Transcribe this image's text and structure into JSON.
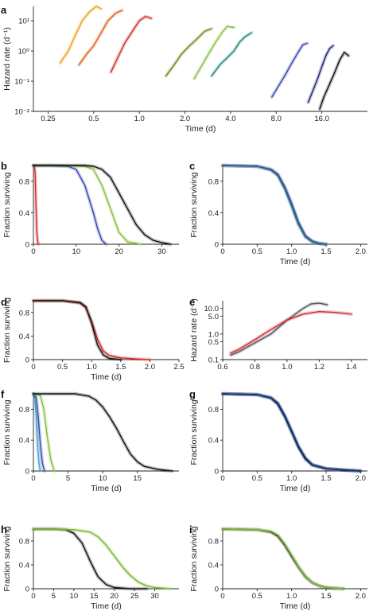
{
  "colors": {
    "orange": "#f0a020",
    "dark_orange": "#e06018",
    "red": "#d42a2a",
    "olive": "#6a8a20",
    "light_green": "#88c040",
    "teal": "#1f8a80",
    "blue": "#3a48b0",
    "navy": "#1a2878",
    "black": "#111111",
    "grey": "#505860",
    "cyan": "#38a8c8",
    "green": "#78b830"
  },
  "chart_data": [
    {
      "panel": "a",
      "type": "line",
      "xlabel": "Time (d)",
      "ylabel": "Hazard rate (d⁻¹)",
      "xscale": "log2",
      "yscale": "log10",
      "xlim": [
        0.2,
        32
      ],
      "ylim": [
        0.01,
        30
      ],
      "xticks": [
        0.25,
        0.5,
        1.0,
        2.0,
        4.0,
        8.0,
        16.0
      ],
      "xtick_labels": [
        "0.25",
        "0.5",
        "1.0",
        "2.0",
        "4.0",
        "8.0",
        "16.0"
      ],
      "yticks": [
        0.01,
        0.1,
        1,
        10
      ],
      "ytick_labels": [
        "10⁻²",
        "10⁻¹",
        "10⁰",
        "10¹"
      ],
      "series": [
        {
          "color": "orange",
          "x": [
            0.3,
            0.34,
            0.38,
            0.42,
            0.47,
            0.52,
            0.56
          ],
          "y": [
            0.4,
            1.0,
            3.5,
            10,
            20,
            30,
            25
          ]
        },
        {
          "color": "dark_orange",
          "x": [
            0.4,
            0.45,
            0.5,
            0.56,
            0.62,
            0.7,
            0.77
          ],
          "y": [
            0.35,
            0.8,
            1.5,
            4,
            10,
            18,
            22
          ]
        },
        {
          "color": "red",
          "x": [
            0.65,
            0.72,
            0.8,
            0.9,
            1.0,
            1.1,
            1.2
          ],
          "y": [
            0.2,
            0.6,
            1.8,
            4.5,
            10,
            14,
            12
          ]
        },
        {
          "color": "olive",
          "x": [
            1.5,
            1.7,
            1.9,
            2.15,
            2.4,
            2.7,
            3.0
          ],
          "y": [
            0.15,
            0.35,
            0.8,
            1.5,
            2.5,
            4.5,
            5.5
          ]
        },
        {
          "color": "light_green",
          "x": [
            2.3,
            2.6,
            2.9,
            3.2,
            3.5,
            3.8,
            4.2
          ],
          "y": [
            0.12,
            0.35,
            0.9,
            2.0,
            4.0,
            6.5,
            6.0
          ]
        },
        {
          "color": "teal",
          "x": [
            3.0,
            3.4,
            3.8,
            4.2,
            4.6,
            5.0,
            5.5
          ],
          "y": [
            0.15,
            0.35,
            0.6,
            1.0,
            2.0,
            3.0,
            4.0
          ]
        },
        {
          "color": "blue",
          "x": [
            7.5,
            8.3,
            9.1,
            10.0,
            11.0,
            12.0,
            12.8
          ],
          "y": [
            0.03,
            0.07,
            0.15,
            0.35,
            0.8,
            1.6,
            1.8
          ]
        },
        {
          "color": "navy",
          "x": [
            13.0,
            14.0,
            15.0,
            16.0,
            17.0,
            18.0,
            19.0
          ],
          "y": [
            0.02,
            0.05,
            0.12,
            0.3,
            0.7,
            1.2,
            1.5
          ]
        },
        {
          "color": "black",
          "x": [
            15.5,
            16.5,
            18.0,
            19.5,
            21.0,
            22.5,
            24.0
          ],
          "y": [
            0.012,
            0.03,
            0.08,
            0.2,
            0.5,
            0.9,
            0.7
          ]
        }
      ]
    },
    {
      "panel": "b",
      "type": "line",
      "xlabel": "",
      "ylabel": "Fraction surviving",
      "xlim": [
        0,
        34
      ],
      "ylim": [
        0,
        1.0
      ],
      "xticks": [
        0,
        10,
        20,
        30
      ],
      "yticks": [
        0,
        0.4,
        0.8
      ],
      "series": [
        {
          "color": "red",
          "x": [
            0,
            0.2,
            0.4,
            0.6,
            0.8,
            1.0,
            1.2
          ],
          "y": [
            1.0,
            1.0,
            0.9,
            0.5,
            0.15,
            0.03,
            0.0
          ]
        },
        {
          "color": "blue",
          "x": [
            0,
            4,
            8,
            10,
            12,
            14,
            15,
            16,
            17
          ],
          "y": [
            1.0,
            1.0,
            0.99,
            0.95,
            0.75,
            0.4,
            0.2,
            0.05,
            0.0
          ]
        },
        {
          "color": "light_green",
          "x": [
            0,
            8,
            12,
            14,
            16,
            18,
            20,
            22,
            25
          ],
          "y": [
            1.0,
            1.0,
            0.99,
            0.95,
            0.75,
            0.45,
            0.15,
            0.03,
            0.0
          ]
        },
        {
          "color": "black",
          "x": [
            0,
            12,
            14,
            16,
            18,
            20,
            22,
            24,
            26,
            28,
            30,
            32
          ],
          "y": [
            1.0,
            1.0,
            0.99,
            0.95,
            0.85,
            0.65,
            0.45,
            0.25,
            0.12,
            0.05,
            0.02,
            0.0
          ]
        }
      ]
    },
    {
      "panel": "c",
      "type": "line",
      "xlabel": "Time (d)",
      "ylabel": "Fraction surviving",
      "xlim": [
        0,
        2.1
      ],
      "ylim": [
        0,
        1.0
      ],
      "xticks": [
        0,
        0.5,
        1.0,
        1.5,
        2.0
      ],
      "xtick_labels": [
        "0",
        "0.5",
        "1.0",
        "1.5",
        "2.0"
      ],
      "yticks": [
        0,
        0.4,
        0.8
      ],
      "series": [
        {
          "color": "olive",
          "x": [
            0,
            0.5,
            0.7,
            0.8,
            0.9,
            1.0,
            1.05,
            1.1,
            1.2,
            1.3,
            1.4,
            1.5
          ],
          "y": [
            1.0,
            0.99,
            0.95,
            0.88,
            0.72,
            0.5,
            0.38,
            0.26,
            0.1,
            0.03,
            0.01,
            0.0
          ]
        },
        {
          "color": "teal",
          "x": [
            0,
            0.5,
            0.7,
            0.8,
            0.9,
            1.0,
            1.05,
            1.1,
            1.2,
            1.3,
            1.4,
            1.5
          ],
          "y": [
            1.0,
            0.99,
            0.94,
            0.87,
            0.7,
            0.48,
            0.36,
            0.25,
            0.09,
            0.03,
            0.01,
            0.0
          ]
        },
        {
          "color": "blue",
          "x": [
            0,
            0.5,
            0.7,
            0.8,
            0.9,
            1.0,
            1.05,
            1.1,
            1.2,
            1.3,
            1.4,
            1.5
          ],
          "y": [
            1.0,
            0.99,
            0.95,
            0.89,
            0.73,
            0.52,
            0.4,
            0.28,
            0.11,
            0.04,
            0.01,
            0.0
          ]
        }
      ]
    },
    {
      "panel": "d",
      "type": "line",
      "xlabel": "Time (d)",
      "ylabel": "Fraction surviving",
      "xlim": [
        0,
        2.5
      ],
      "ylim": [
        0,
        1.0
      ],
      "xticks": [
        0,
        0.5,
        1.0,
        1.5,
        2.0,
        2.5
      ],
      "xtick_labels": [
        "0",
        "0.5",
        "1.0",
        "1.5",
        "2.0",
        "2.5"
      ],
      "yticks": [
        0,
        0.4,
        0.8
      ],
      "series": [
        {
          "color": "red",
          "x": [
            0,
            0.5,
            0.8,
            0.9,
            1.0,
            1.1,
            1.2,
            1.3,
            1.5,
            1.8,
            2.0
          ],
          "y": [
            1.0,
            1.0,
            0.96,
            0.88,
            0.65,
            0.35,
            0.15,
            0.07,
            0.03,
            0.01,
            0.0
          ]
        },
        {
          "color": "black",
          "x": [
            0,
            0.5,
            0.8,
            0.9,
            1.0,
            1.1,
            1.2,
            1.3,
            1.5
          ],
          "y": [
            1.0,
            1.0,
            0.97,
            0.9,
            0.62,
            0.25,
            0.08,
            0.02,
            0.0
          ]
        }
      ]
    },
    {
      "panel": "e",
      "type": "line",
      "xlabel": "",
      "ylabel": "Hazard rate (d⁻¹)",
      "yscale": "log10",
      "xlim": [
        0.6,
        1.5
      ],
      "ylim": [
        0.1,
        20
      ],
      "xticks": [
        0.6,
        0.8,
        1.0,
        1.2,
        1.4
      ],
      "xtick_labels": [
        "0.6",
        "0.8",
        "1.0",
        "1.2",
        "1.4"
      ],
      "yticks": [
        0.1,
        0.5,
        1.0,
        5.0,
        10.0
      ],
      "ytick_labels": [
        "0.1",
        "0.5",
        "1.0",
        "5.0",
        "10.0"
      ],
      "series": [
        {
          "color": "grey",
          "x": [
            0.65,
            0.7,
            0.8,
            0.9,
            1.0,
            1.1,
            1.15,
            1.2,
            1.25
          ],
          "y": [
            0.15,
            0.2,
            0.45,
            1.0,
            3.5,
            10,
            15,
            16,
            14
          ]
        },
        {
          "color": "red",
          "x": [
            0.65,
            0.7,
            0.8,
            0.9,
            1.0,
            1.1,
            1.2,
            1.3,
            1.4
          ],
          "y": [
            0.18,
            0.25,
            0.6,
            1.5,
            3.5,
            6.0,
            7.5,
            7.0,
            6.0
          ]
        }
      ]
    },
    {
      "panel": "f",
      "type": "line",
      "xlabel": "Time (d)",
      "ylabel": "Fraction surviving",
      "xlim": [
        0,
        21
      ],
      "ylim": [
        0,
        1.0
      ],
      "xticks": [
        0,
        5,
        10,
        15
      ],
      "yticks": [
        0,
        0.4,
        0.8
      ],
      "series": [
        {
          "color": "cyan",
          "x": [
            0,
            0.2,
            0.4,
            0.6,
            0.8,
            1.0
          ],
          "y": [
            1.0,
            0.95,
            0.7,
            0.35,
            0.1,
            0.0
          ]
        },
        {
          "color": "blue",
          "x": [
            0,
            0.4,
            0.7,
            1.0,
            1.3,
            1.6
          ],
          "y": [
            1.0,
            0.95,
            0.7,
            0.35,
            0.1,
            0.0
          ]
        },
        {
          "color": "light_green",
          "x": [
            0,
            1.0,
            1.5,
            2.0,
            2.5,
            3.0
          ],
          "y": [
            1.0,
            0.98,
            0.8,
            0.45,
            0.15,
            0.0
          ]
        },
        {
          "color": "black",
          "x": [
            0,
            6,
            8,
            9,
            10,
            11,
            12,
            13,
            14,
            15,
            16,
            18,
            20
          ],
          "y": [
            1.0,
            1.0,
            0.97,
            0.92,
            0.83,
            0.7,
            0.55,
            0.38,
            0.22,
            0.12,
            0.06,
            0.02,
            0.0
          ]
        }
      ]
    },
    {
      "panel": "g",
      "type": "line",
      "xlabel": "Time (d)",
      "ylabel": "Fraction surviving",
      "xlim": [
        0,
        2.1
      ],
      "ylim": [
        0,
        1.0
      ],
      "xticks": [
        0,
        0.5,
        1.0,
        1.5,
        2.0
      ],
      "xtick_labels": [
        "0",
        "0.5",
        "1.0",
        "1.5",
        "2.0"
      ],
      "yticks": [
        0,
        0.4,
        0.8
      ],
      "series": [
        {
          "color": "cyan",
          "x": [
            0,
            0.5,
            0.7,
            0.8,
            0.9,
            1.0,
            1.1,
            1.2,
            1.3,
            1.5,
            1.8,
            2.0
          ],
          "y": [
            1.0,
            0.99,
            0.94,
            0.86,
            0.7,
            0.5,
            0.3,
            0.15,
            0.07,
            0.03,
            0.01,
            0.0
          ]
        },
        {
          "color": "black",
          "x": [
            0,
            0.5,
            0.7,
            0.8,
            0.9,
            1.0,
            1.1,
            1.2,
            1.3,
            1.5,
            1.8,
            2.0
          ],
          "y": [
            1.0,
            0.99,
            0.95,
            0.87,
            0.71,
            0.51,
            0.31,
            0.16,
            0.08,
            0.03,
            0.01,
            0.0
          ]
        },
        {
          "color": "navy",
          "x": [
            0,
            0.5,
            0.7,
            0.8,
            0.9,
            1.0,
            1.1,
            1.2,
            1.3,
            1.5,
            1.8,
            2.0
          ],
          "y": [
            1.0,
            0.99,
            0.95,
            0.88,
            0.72,
            0.52,
            0.32,
            0.17,
            0.08,
            0.03,
            0.01,
            0.0
          ]
        }
      ]
    },
    {
      "panel": "h",
      "type": "line",
      "xlabel": "Time (d)",
      "ylabel": "Fraction surviving",
      "xlim": [
        0,
        36
      ],
      "ylim": [
        0,
        1.0
      ],
      "xticks": [
        0,
        5,
        10,
        15,
        20,
        25,
        30
      ],
      "yticks": [
        0,
        0.4,
        0.8
      ],
      "series": [
        {
          "color": "black",
          "x": [
            0,
            5,
            8,
            10,
            12,
            13,
            14,
            15,
            16,
            18,
            20,
            24,
            28
          ],
          "y": [
            1.0,
            1.0,
            0.99,
            0.93,
            0.77,
            0.62,
            0.47,
            0.33,
            0.2,
            0.07,
            0.02,
            0.0,
            0.0
          ]
        },
        {
          "color": "green",
          "x": [
            0,
            5,
            10,
            14,
            16,
            18,
            20,
            22,
            24,
            26,
            28,
            30,
            34
          ],
          "y": [
            1.0,
            1.0,
            0.99,
            0.95,
            0.87,
            0.73,
            0.55,
            0.37,
            0.22,
            0.11,
            0.05,
            0.02,
            0.0
          ]
        }
      ]
    },
    {
      "panel": "i",
      "type": "line",
      "xlabel": "Time (d)",
      "ylabel": "Fraction surviving",
      "xlim": [
        0,
        2.1
      ],
      "ylim": [
        0,
        1.0
      ],
      "xticks": [
        0,
        0.5,
        1.0,
        1.5,
        2.0
      ],
      "xtick_labels": [
        "0",
        "0.5",
        "1.0",
        "1.5",
        "2.0"
      ],
      "yticks": [
        0,
        0.4,
        0.8
      ],
      "series": [
        {
          "color": "black",
          "x": [
            0,
            0.5,
            0.7,
            0.8,
            0.9,
            1.0,
            1.1,
            1.2,
            1.3,
            1.4,
            1.5,
            1.6,
            1.75
          ],
          "y": [
            1.0,
            0.99,
            0.95,
            0.88,
            0.73,
            0.54,
            0.36,
            0.2,
            0.1,
            0.05,
            0.02,
            0.01,
            0.0
          ]
        },
        {
          "color": "green",
          "x": [
            0,
            0.5,
            0.7,
            0.8,
            0.9,
            1.0,
            1.1,
            1.2,
            1.3,
            1.4,
            1.5,
            1.6,
            1.75
          ],
          "y": [
            1.0,
            0.99,
            0.96,
            0.9,
            0.75,
            0.56,
            0.37,
            0.21,
            0.1,
            0.05,
            0.02,
            0.01,
            0.0
          ]
        }
      ]
    }
  ]
}
